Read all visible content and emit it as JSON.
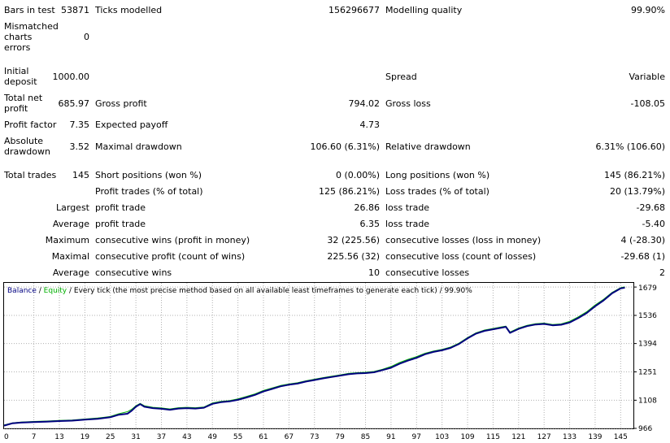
{
  "summary": {
    "bars_label": "Bars in test",
    "bars_value": "53871",
    "ticks_label": "Ticks modelled",
    "ticks_value": "156296677",
    "quality_label": "Modelling quality",
    "quality_value": "99.90%",
    "mismatch_label_1": "Mismatched",
    "mismatch_label_2": "charts",
    "mismatch_label_3": "errors",
    "mismatch_value": "0",
    "deposit_label_1": "Initial",
    "deposit_label_2": "deposit",
    "deposit_value": "1000.00",
    "spread_label": "Spread",
    "spread_value": "Variable",
    "netprofit_label_1": "Total net",
    "netprofit_label_2": "profit",
    "netprofit_value": "685.97",
    "grossprofit_label": "Gross profit",
    "grossprofit_value": "794.02",
    "grossloss_label": "Gross loss",
    "grossloss_value": "-108.05",
    "pf_label": "Profit factor",
    "pf_value": "7.35",
    "payoff_label": "Expected payoff",
    "payoff_value": "4.73",
    "absdd_label_1": "Absolute",
    "absdd_label_2": "drawdown",
    "absdd_value": "3.52",
    "maxdd_label": "Maximal drawdown",
    "maxdd_value": "106.60 (6.31%)",
    "reldd_label": "Relative drawdown",
    "reldd_value": "6.31% (106.60)"
  },
  "trades": {
    "total_label": "Total trades",
    "total_value": "145",
    "short_label": "Short positions (won %)",
    "short_value": "0 (0.00%)",
    "long_label": "Long positions (won %)",
    "long_value": "145 (86.21%)",
    "profit_label": "Profit trades (% of total)",
    "profit_value": "125 (86.21%)",
    "loss_label": "Loss trades (% of total)",
    "loss_value": "20 (13.79%)",
    "largest_label": "Largest",
    "largest_profit_label": "profit trade",
    "largest_profit_value": "26.86",
    "largest_loss_label": "loss trade",
    "largest_loss_value": "-29.68",
    "average_label": "Average",
    "average_profit_label": "profit trade",
    "average_profit_value": "6.35",
    "average_loss_label": "loss trade",
    "average_loss_value": "-5.40",
    "maximum_label": "Maximum",
    "max_wins_label": "consecutive wins (profit in money)",
    "max_wins_value": "32 (225.56)",
    "max_losses_label": "consecutive losses (loss in money)",
    "max_losses_value": "4 (-28.30)",
    "maximal_label": "Maximal",
    "maximal_profit_label": "consecutive profit (count of wins)",
    "maximal_profit_value": "225.56 (32)",
    "maximal_loss_label": "consecutive loss (count of losses)",
    "maximal_loss_value": "-29.68 (1)",
    "avg2_label": "Average",
    "avg_wins_label": "consecutive wins",
    "avg_wins_value": "10",
    "avg_losses_label": "consecutive losses",
    "avg_losses_value": "2"
  },
  "chart_data": {
    "type": "line",
    "legend_balance": "Balance",
    "legend_sep": " / ",
    "legend_equity": "Equity",
    "legend_rest": " / Every tick (the most precise method based on all available least timeframes to generate each tick) / 99.90%",
    "x_ticks": [
      "0",
      "7",
      "13",
      "19",
      "25",
      "31",
      "37",
      "43",
      "49",
      "55",
      "61",
      "67",
      "73",
      "79",
      "85",
      "91",
      "97",
      "103",
      "109",
      "115",
      "121",
      "127",
      "133",
      "139",
      "145"
    ],
    "y_ticks": [
      "1679",
      "1536",
      "1394",
      "1251",
      "1108",
      "966"
    ],
    "xlim": [
      0,
      148
    ],
    "ylim": [
      966,
      1700
    ],
    "grid": true,
    "balance_color": "#000080",
    "equity_color": "#00b000",
    "series": [
      {
        "name": "Balance",
        "x": [
          0,
          2,
          4,
          7,
          10,
          13,
          16,
          19,
          22,
          25,
          27,
          29,
          30,
          31,
          32,
          33,
          35,
          37,
          39,
          41,
          43,
          45,
          47,
          49,
          51,
          53,
          55,
          57,
          59,
          61,
          63,
          65,
          67,
          69,
          71,
          73,
          75,
          77,
          79,
          81,
          83,
          85,
          87,
          89,
          91,
          93,
          95,
          97,
          99,
          101,
          103,
          105,
          107,
          109,
          111,
          113,
          115,
          117,
          118,
          119,
          121,
          123,
          125,
          127,
          129,
          131,
          133,
          135,
          137,
          139,
          141,
          143,
          145,
          146
        ],
        "y": [
          980,
          992,
          995,
          998,
          1000,
          1003,
          1005,
          1010,
          1014,
          1022,
          1035,
          1040,
          1055,
          1075,
          1088,
          1075,
          1068,
          1065,
          1060,
          1066,
          1068,
          1066,
          1070,
          1090,
          1098,
          1102,
          1110,
          1122,
          1135,
          1152,
          1165,
          1178,
          1186,
          1192,
          1202,
          1210,
          1218,
          1225,
          1232,
          1239,
          1243,
          1245,
          1249,
          1260,
          1272,
          1292,
          1308,
          1322,
          1340,
          1352,
          1360,
          1372,
          1392,
          1420,
          1444,
          1458,
          1466,
          1474,
          1478,
          1448,
          1468,
          1482,
          1490,
          1493,
          1486,
          1489,
          1500,
          1522,
          1548,
          1582,
          1612,
          1648,
          1672,
          1676
        ]
      },
      {
        "name": "Equity",
        "x": [
          0,
          2,
          4,
          7,
          10,
          13,
          16,
          19,
          22,
          25,
          27,
          29,
          30,
          31,
          32,
          33,
          35,
          37,
          39,
          41,
          43,
          45,
          47,
          49,
          51,
          53,
          55,
          57,
          59,
          61,
          63,
          65,
          67,
          69,
          71,
          73,
          75,
          77,
          79,
          81,
          83,
          85,
          87,
          89,
          91,
          93,
          95,
          97,
          99,
          101,
          103,
          105,
          107,
          109,
          111,
          113,
          115,
          117,
          118,
          119,
          121,
          123,
          125,
          127,
          129,
          131,
          133,
          135,
          137,
          139,
          141,
          143,
          145,
          146
        ],
        "y": [
          983,
          994,
          998,
          1001,
          1003,
          1006,
          1008,
          1013,
          1018,
          1026,
          1040,
          1050,
          1062,
          1080,
          1092,
          1080,
          1072,
          1069,
          1064,
          1070,
          1072,
          1070,
          1074,
          1094,
          1102,
          1106,
          1115,
          1127,
          1140,
          1157,
          1170,
          1182,
          1190,
          1196,
          1206,
          1214,
          1222,
          1229,
          1236,
          1243,
          1247,
          1249,
          1253,
          1264,
          1278,
          1298,
          1314,
          1328,
          1345,
          1356,
          1364,
          1376,
          1396,
          1424,
          1448,
          1462,
          1470,
          1478,
          1482,
          1452,
          1472,
          1486,
          1494,
          1497,
          1490,
          1493,
          1506,
          1528,
          1554,
          1588,
          1617,
          1652,
          1676,
          1680
        ]
      }
    ]
  }
}
